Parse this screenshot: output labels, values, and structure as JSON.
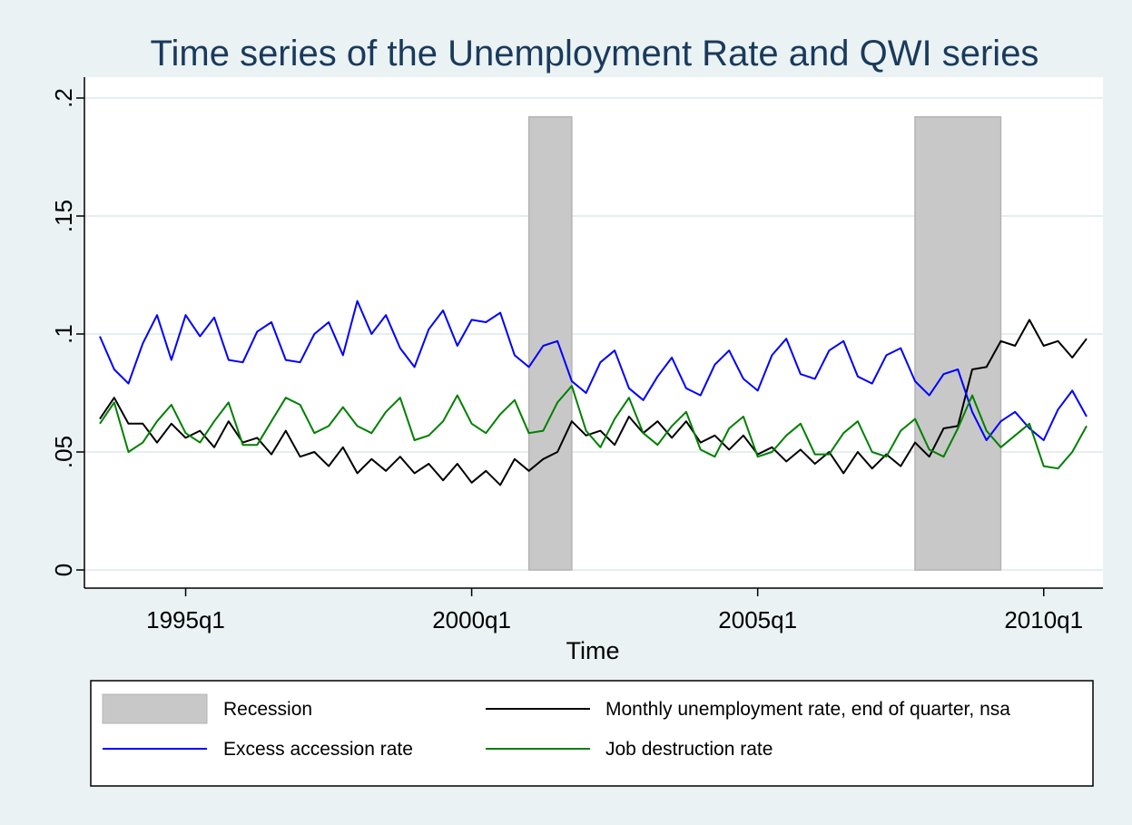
{
  "chart_data": {
    "type": "line",
    "title": "Time series of the Unemployment Rate and QWI series",
    "xlabel": "Time",
    "ylabel": "",
    "ylim": [
      0,
      0.2
    ],
    "x_range": [
      "1993q3",
      "2010q4"
    ],
    "y_ticks": [
      {
        "value": 0,
        "label": "0"
      },
      {
        "value": 0.05,
        "label": ".05"
      },
      {
        "value": 0.1,
        "label": ".1"
      },
      {
        "value": 0.15,
        "label": ".15"
      },
      {
        "value": 0.2,
        "label": ".2"
      }
    ],
    "x_ticks": [
      {
        "value": 1995.0,
        "label": "1995q1"
      },
      {
        "value": 2000.0,
        "label": "2000q1"
      },
      {
        "value": 2005.0,
        "label": "2005q1"
      },
      {
        "value": 2010.0,
        "label": "2010q1"
      }
    ],
    "grid": true,
    "legend_position": "bottom",
    "recessions": [
      {
        "name": "Recession",
        "start": "2001q1",
        "end": "2001q4",
        "height": 0.192,
        "color": "#c8c8c8"
      },
      {
        "name": "Recession",
        "start": "2007q4",
        "end": "2009q2",
        "height": 0.192,
        "color": "#c8c8c8"
      }
    ],
    "x": [
      "1993q3",
      "1993q4",
      "1994q1",
      "1994q2",
      "1994q3",
      "1994q4",
      "1995q1",
      "1995q2",
      "1995q3",
      "1995q4",
      "1996q1",
      "1996q2",
      "1996q3",
      "1996q4",
      "1997q1",
      "1997q2",
      "1997q3",
      "1997q4",
      "1998q1",
      "1998q2",
      "1998q3",
      "1998q4",
      "1999q1",
      "1999q2",
      "1999q3",
      "1999q4",
      "2000q1",
      "2000q2",
      "2000q3",
      "2000q4",
      "2001q1",
      "2001q2",
      "2001q3",
      "2001q4",
      "2002q1",
      "2002q2",
      "2002q3",
      "2002q4",
      "2003q1",
      "2003q2",
      "2003q3",
      "2003q4",
      "2004q1",
      "2004q2",
      "2004q3",
      "2004q4",
      "2005q1",
      "2005q2",
      "2005q3",
      "2005q4",
      "2006q1",
      "2006q2",
      "2006q3",
      "2006q4",
      "2007q1",
      "2007q2",
      "2007q3",
      "2007q4",
      "2008q1",
      "2008q2",
      "2008q3",
      "2008q4",
      "2009q1",
      "2009q2",
      "2009q3",
      "2009q4",
      "2010q1",
      "2010q2",
      "2010q3",
      "2010q4"
    ],
    "series": [
      {
        "name": "Monthly unemployment rate, end of quarter, nsa",
        "color": "#000000",
        "values": [
          0.064,
          0.073,
          0.062,
          0.062,
          0.054,
          0.062,
          0.056,
          0.059,
          0.052,
          0.063,
          0.054,
          0.056,
          0.049,
          0.059,
          0.048,
          0.05,
          0.044,
          0.052,
          0.041,
          0.047,
          0.042,
          0.048,
          0.041,
          0.045,
          0.038,
          0.045,
          0.037,
          0.042,
          0.036,
          0.047,
          0.042,
          0.047,
          0.05,
          0.063,
          0.057,
          0.059,
          0.053,
          0.065,
          0.058,
          0.063,
          0.056,
          0.063,
          0.054,
          0.057,
          0.051,
          0.057,
          0.049,
          0.052,
          0.046,
          0.051,
          0.045,
          0.05,
          0.041,
          0.05,
          0.043,
          0.049,
          0.044,
          0.054,
          0.048,
          0.06,
          0.061,
          0.085,
          0.086,
          0.097,
          0.095,
          0.106,
          0.095,
          0.097,
          0.09,
          0.098
        ]
      },
      {
        "name": "Excess accession rate",
        "color": "#0000ff",
        "values": [
          0.099,
          0.085,
          0.079,
          0.096,
          0.108,
          0.089,
          0.108,
          0.099,
          0.107,
          0.089,
          0.088,
          0.101,
          0.105,
          0.089,
          0.088,
          0.1,
          0.105,
          0.091,
          0.114,
          0.1,
          0.108,
          0.094,
          0.086,
          0.102,
          0.11,
          0.095,
          0.106,
          0.105,
          0.109,
          0.091,
          0.086,
          0.095,
          0.097,
          0.08,
          0.075,
          0.088,
          0.093,
          0.077,
          0.072,
          0.082,
          0.09,
          0.077,
          0.074,
          0.087,
          0.093,
          0.081,
          0.076,
          0.091,
          0.098,
          0.083,
          0.081,
          0.093,
          0.097,
          0.082,
          0.079,
          0.091,
          0.094,
          0.08,
          0.074,
          0.083,
          0.085,
          0.067,
          0.055,
          0.063,
          0.067,
          0.06,
          0.055,
          0.068,
          0.076,
          0.065
        ]
      },
      {
        "name": "Job destruction rate",
        "color": "#008000",
        "values": [
          0.062,
          0.071,
          0.05,
          0.054,
          0.063,
          0.07,
          0.058,
          0.054,
          0.063,
          0.071,
          0.053,
          0.053,
          0.063,
          0.073,
          0.07,
          0.058,
          0.061,
          0.069,
          0.061,
          0.058,
          0.067,
          0.073,
          0.055,
          0.057,
          0.063,
          0.074,
          0.062,
          0.058,
          0.066,
          0.072,
          0.058,
          0.059,
          0.071,
          0.078,
          0.059,
          0.052,
          0.064,
          0.073,
          0.058,
          0.053,
          0.061,
          0.067,
          0.051,
          0.048,
          0.06,
          0.065,
          0.048,
          0.05,
          0.057,
          0.062,
          0.049,
          0.049,
          0.058,
          0.063,
          0.05,
          0.048,
          0.059,
          0.064,
          0.051,
          0.048,
          0.06,
          0.074,
          0.059,
          0.052,
          0.057,
          0.062,
          0.044,
          0.043,
          0.05,
          0.061
        ]
      }
    ],
    "legend": [
      {
        "label": "Recession",
        "kind": "area",
        "color": "#c8c8c8"
      },
      {
        "label": "Monthly unemployment rate, end of quarter, nsa",
        "kind": "line",
        "color": "#000000"
      },
      {
        "label": "Excess accession rate",
        "kind": "line",
        "color": "#0000ff"
      },
      {
        "label": "Job destruction rate",
        "kind": "line",
        "color": "#008000"
      }
    ]
  }
}
